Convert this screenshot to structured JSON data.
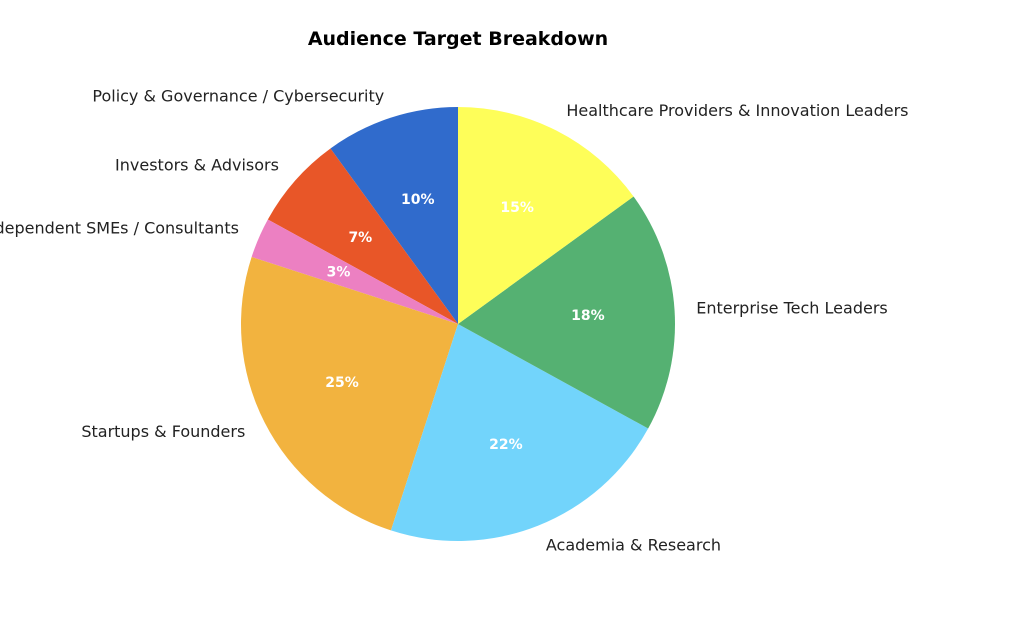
{
  "chart_data": {
    "type": "pie",
    "title": "Audience Target Breakdown",
    "start_angle_deg": 90,
    "direction": "counterclockwise",
    "slices": [
      {
        "label": "Policy & Governance / Cybersecurity",
        "value": 10,
        "pct_label": "10%",
        "color": "#306bcc"
      },
      {
        "label": "Investors & Advisors",
        "value": 7,
        "pct_label": "7%",
        "color": "#e85628"
      },
      {
        "label": "Independent SMEs / Consultants",
        "value": 3,
        "pct_label": "3%",
        "color": "#ec80c2"
      },
      {
        "label": "Startups & Founders",
        "value": 25,
        "pct_label": "25%",
        "color": "#f2b33f"
      },
      {
        "label": "Academia & Research",
        "value": 22,
        "pct_label": "22%",
        "color": "#72d4fb"
      },
      {
        "label": "Enterprise Tech Leaders",
        "value": 18,
        "pct_label": "18%",
        "color": "#55b172"
      },
      {
        "label": "Healthcare Providers & Innovation Leaders",
        "value": 15,
        "pct_label": "15%",
        "color": "#fefe59"
      }
    ]
  }
}
